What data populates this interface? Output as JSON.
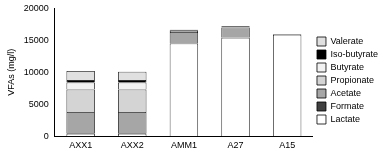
{
  "chart_data": {
    "type": "bar",
    "stacked": true,
    "y_label": "VFAs (mg/l)",
    "categories": [
      "AXX1",
      "AXX2",
      "AMM1",
      "A27",
      "A15"
    ],
    "series": [
      {
        "name": "Lactate",
        "color": "#ffffff",
        "values": [
          400,
          400,
          14500,
          15400,
          15900
        ]
      },
      {
        "name": "Formate",
        "color": "#404040",
        "values": [
          100,
          100,
          0,
          0,
          0
        ]
      },
      {
        "name": "Acetate",
        "color": "#a6a6a6",
        "values": [
          3300,
          3300,
          1800,
          1600,
          100
        ]
      },
      {
        "name": "Propionate",
        "color": "#d4d4d4",
        "values": [
          3500,
          3500,
          200,
          200,
          0
        ]
      },
      {
        "name": "Butyrate",
        "color": "#f2f2f2",
        "values": [
          1100,
          1100,
          0,
          0,
          0
        ]
      },
      {
        "name": "Iso-butyrate",
        "color": "#000000",
        "values": [
          400,
          400,
          150,
          0,
          0
        ]
      },
      {
        "name": "Valerate",
        "color": "#e0e0e0",
        "values": [
          1400,
          1300,
          0,
          0,
          0
        ]
      }
    ],
    "ylim": [
      0,
      20000
    ],
    "yticks": [
      0,
      5000,
      10000,
      15000,
      20000
    ],
    "grid": false,
    "legend": "right"
  }
}
